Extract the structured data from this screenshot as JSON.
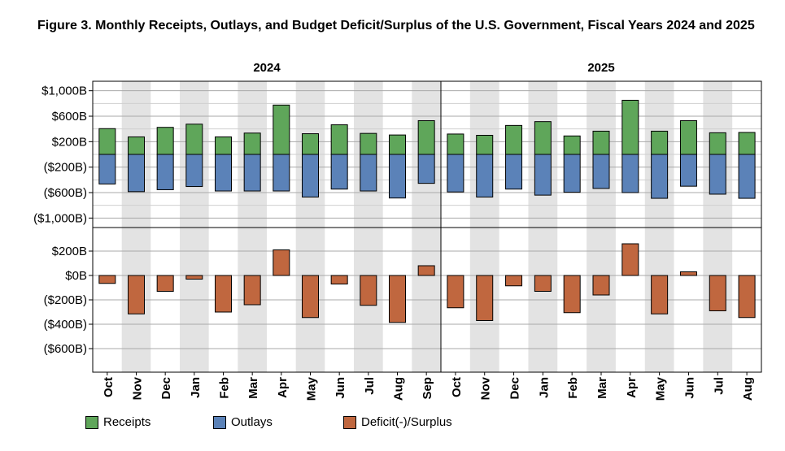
{
  "title": "Figure 3. Monthly Receipts, Outlays, and Budget Deficit/Surplus of the U.S. Government, Fiscal Years 2024 and 2025",
  "colors": {
    "receipts": "#5fa65a",
    "outlays": "#5b82b8",
    "deficit": "#c0673f",
    "shade": "#e3e3e3"
  },
  "legend": {
    "receipts": "Receipts",
    "outlays": "Outlays",
    "deficit": "Deficit(-)/Surplus"
  },
  "chart_data": {
    "type": "bar",
    "title": "Figure 3. Monthly Receipts, Outlays, and Budget Deficit/Surplus of the U.S. Government, Fiscal Years 2024 and 2025",
    "groups": [
      {
        "label": "2024",
        "categories": [
          "Oct",
          "Nov",
          "Dec",
          "Jan",
          "Feb",
          "Mar",
          "Apr",
          "May",
          "Jun",
          "Jul",
          "Aug",
          "Sep"
        ]
      },
      {
        "label": "2025",
        "categories": [
          "Oct",
          "Nov",
          "Dec",
          "Jan",
          "Feb",
          "Mar",
          "Apr",
          "May",
          "Jun",
          "Jul",
          "Aug"
        ]
      }
    ],
    "categories": [
      "Oct",
      "Nov",
      "Dec",
      "Jan",
      "Feb",
      "Mar",
      "Apr",
      "May",
      "Jun",
      "Jul",
      "Aug",
      "Sep",
      "Oct",
      "Nov",
      "Dec",
      "Jan",
      "Feb",
      "Mar",
      "Apr",
      "May",
      "Jun",
      "Jul",
      "Aug"
    ],
    "panels": [
      {
        "name": "receipts_outlays",
        "ylim": [
          -1100,
          1150
        ],
        "ticks": [
          1000,
          600,
          200,
          -200,
          -600,
          -1000
        ],
        "tick_labels": [
          "$1,000B",
          "$600B",
          "$200B",
          "($200B)",
          "($600B)",
          "($1,000B)"
        ],
        "series": [
          {
            "name": "Receipts",
            "values": [
              405,
              275,
              425,
              475,
              275,
              335,
              775,
              325,
              465,
              330,
              305,
              530,
              320,
              300,
              455,
              515,
              290,
              365,
              850,
              365,
              530,
              340,
              345
            ]
          },
          {
            "name": "Outlays",
            "values": [
              -465,
              -585,
              -555,
              -505,
              -575,
              -575,
              -575,
              -670,
              -545,
              -575,
              -685,
              -455,
              -590,
              -670,
              -545,
              -640,
              -595,
              -535,
              -600,
              -690,
              -500,
              -625,
              -690
            ]
          }
        ]
      },
      {
        "name": "deficit_surplus",
        "ylim": [
          -800,
          280
        ],
        "ticks": [
          200,
          0,
          -200,
          -400,
          -600
        ],
        "tick_labels": [
          "$200B",
          "$0B",
          "($200B)",
          "($400B)",
          "($600B)"
        ],
        "series": [
          {
            "name": "Deficit(-)/Surplus",
            "values": [
              -65,
              -315,
              -130,
              -30,
              -300,
              -240,
              210,
              -345,
              -70,
              -245,
              -385,
              80,
              -265,
              -370,
              -85,
              -130,
              -305,
              -160,
              260,
              -315,
              30,
              -290,
              -345
            ]
          }
        ]
      }
    ]
  }
}
